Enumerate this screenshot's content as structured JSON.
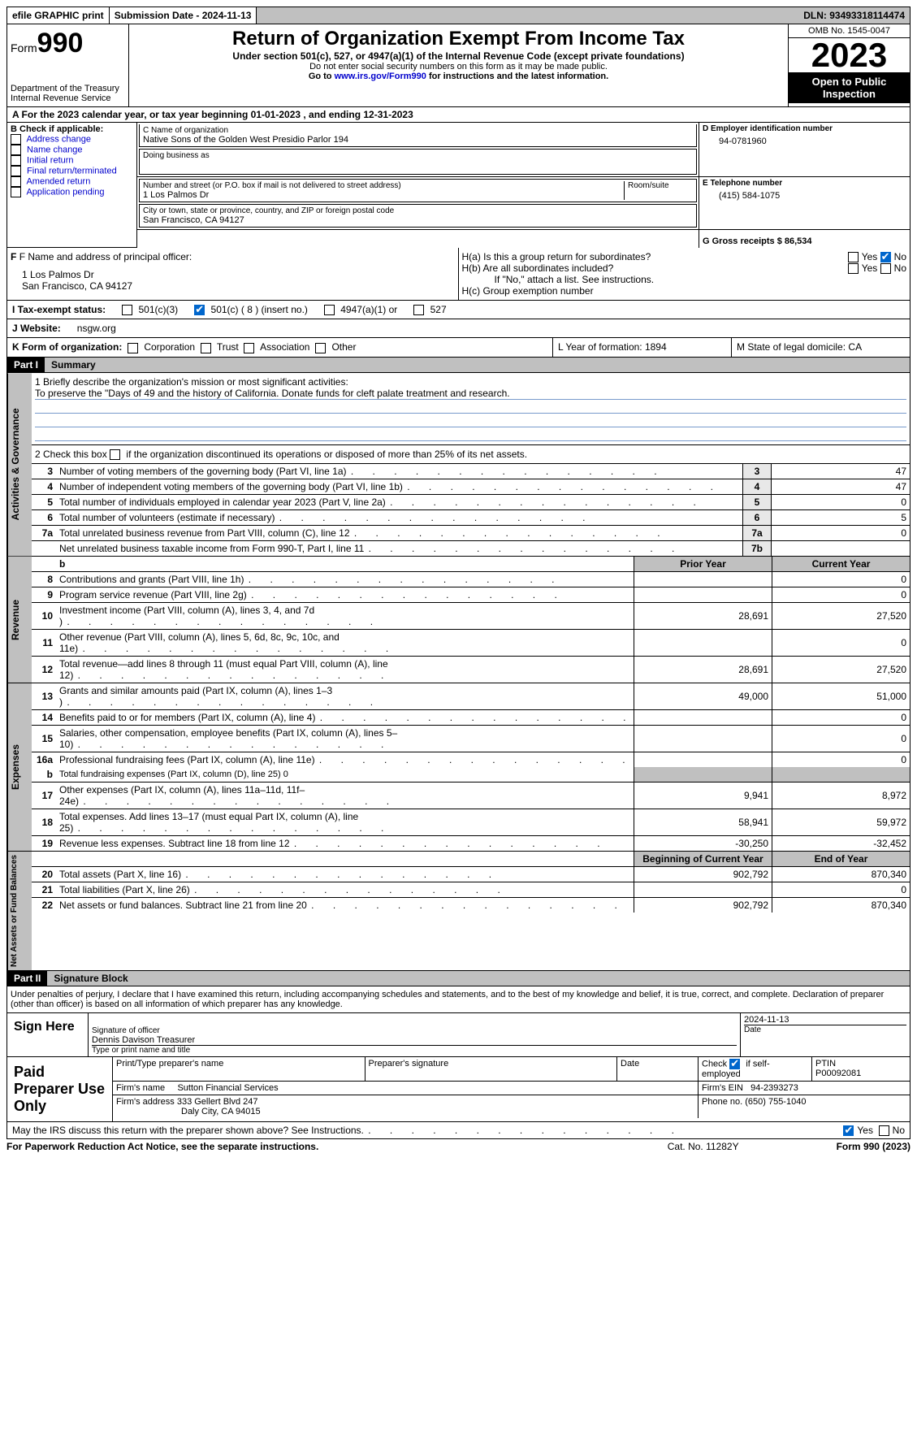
{
  "top": {
    "efile": "efile GRAPHIC print",
    "submission_label": "Submission Date - 2024-11-13",
    "dln_label": "DLN: 93493318114474"
  },
  "header": {
    "form_word": "Form",
    "form_num": "990",
    "dept": "Department of the Treasury",
    "irs": "Internal Revenue Service",
    "title": "Return of Organization Exempt From Income Tax",
    "subtitle": "Under section 501(c), 527, or 4947(a)(1) of the Internal Revenue Code (except private foundations)",
    "ssn_note": "Do not enter social security numbers on this form as it may be made public.",
    "goto": "Go to ",
    "goto_link": "www.irs.gov/Form990",
    "goto_suffix": " for instructions and the latest information.",
    "omb": "OMB No. 1545-0047",
    "year": "2023",
    "open": "Open to Public Inspection"
  },
  "line_a": "A For the 2023 calendar year, or tax year beginning 01-01-2023    , and ending 12-31-2023",
  "section_b": {
    "label": "B Check if applicable:",
    "opts": [
      "Address change",
      "Name change",
      "Initial return",
      "Final return/terminated",
      "Amended return",
      "Application pending"
    ]
  },
  "section_c": {
    "name_label": "C Name of organization",
    "name": "Native Sons of the Golden West Presidio Parlor 194",
    "dba_label": "Doing business as",
    "street_label": "Number and street (or P.O. box if mail is not delivered to street address)",
    "room_label": "Room/suite",
    "street": "1 Los Palmos Dr",
    "city_label": "City or town, state or province, country, and ZIP or foreign postal code",
    "city": "San Francisco, CA  94127"
  },
  "section_d": {
    "label": "D Employer identification number",
    "value": "94-0781960"
  },
  "section_e": {
    "label": "E Telephone number",
    "value": "(415) 584-1075"
  },
  "section_g": {
    "label": "G Gross receipts $ 86,534"
  },
  "section_f": {
    "label": "F  Name and address of principal officer:",
    "addr1": "1 Los Palmos Dr",
    "addr2": "San Francisco, CA  94127"
  },
  "section_h": {
    "a": "H(a)  Is this a group return for subordinates?",
    "b": "H(b)  Are all subordinates included?",
    "b_note": "If \"No,\" attach a list. See instructions.",
    "c": "H(c)  Group exemption number",
    "yes": "Yes",
    "no": "No"
  },
  "section_i": {
    "label": "I   Tax-exempt status:",
    "o1": "501(c)(3)",
    "o2": "501(c) ( 8 ) (insert no.)",
    "o3": "4947(a)(1) or",
    "o4": "527"
  },
  "section_j": {
    "label": "J   Website:",
    "value": "nsgw.org"
  },
  "section_k": {
    "label": "K Form of organization:",
    "o1": "Corporation",
    "o2": "Trust",
    "o3": "Association",
    "o4": "Other"
  },
  "section_l": "L Year of formation: 1894",
  "section_m": "M State of legal domicile: CA",
  "part1": {
    "num": "Part I",
    "title": "Summary",
    "l1_label": "1   Briefly describe the organization's mission or most significant activities:",
    "l1_text": "To preserve the \"Days of 49 and the history of California. Donate funds for cleft palate treatment and research.",
    "l2_label": "2   Check this box",
    "l2_suffix": "if the organization discontinued its operations or disposed of more than 25% of its net assets.",
    "gov_label": "Activities & Governance",
    "rev_label": "Revenue",
    "exp_label": "Expenses",
    "net_label": "Net Assets or Fund Balances",
    "lines_gov": [
      {
        "n": "3",
        "t": "Number of voting members of the governing body (Part VI, line 1a)",
        "box": "3",
        "v": "47"
      },
      {
        "n": "4",
        "t": "Number of independent voting members of the governing body (Part VI, line 1b)",
        "box": "4",
        "v": "47"
      },
      {
        "n": "5",
        "t": "Total number of individuals employed in calendar year 2023 (Part V, line 2a)",
        "box": "5",
        "v": "0"
      },
      {
        "n": "6",
        "t": "Total number of volunteers (estimate if necessary)",
        "box": "6",
        "v": "5"
      },
      {
        "n": "7a",
        "t": "Total unrelated business revenue from Part VIII, column (C), line 12",
        "box": "7a",
        "v": "0"
      },
      {
        "n": "",
        "t": "Net unrelated business taxable income from Form 990-T, Part I, line 11",
        "box": "7b",
        "v": ""
      }
    ],
    "hdr_b": "b",
    "hdr_prior": "Prior Year",
    "hdr_current": "Current Year",
    "lines_rev": [
      {
        "n": "8",
        "t": "Contributions and grants (Part VIII, line 1h)",
        "p": "",
        "c": "0"
      },
      {
        "n": "9",
        "t": "Program service revenue (Part VIII, line 2g)",
        "p": "",
        "c": "0"
      },
      {
        "n": "10",
        "t": "Investment income (Part VIII, column (A), lines 3, 4, and 7d )",
        "p": "28,691",
        "c": "27,520"
      },
      {
        "n": "11",
        "t": "Other revenue (Part VIII, column (A), lines 5, 6d, 8c, 9c, 10c, and 11e)",
        "p": "",
        "c": "0"
      },
      {
        "n": "12",
        "t": "Total revenue—add lines 8 through 11 (must equal Part VIII, column (A), line 12)",
        "p": "28,691",
        "c": "27,520"
      }
    ],
    "lines_exp": [
      {
        "n": "13",
        "t": "Grants and similar amounts paid (Part IX, column (A), lines 1–3 )",
        "p": "49,000",
        "c": "51,000"
      },
      {
        "n": "14",
        "t": "Benefits paid to or for members (Part IX, column (A), line 4)",
        "p": "",
        "c": "0"
      },
      {
        "n": "15",
        "t": "Salaries, other compensation, employee benefits (Part IX, column (A), lines 5–10)",
        "p": "",
        "c": "0"
      },
      {
        "n": "16a",
        "t": "Professional fundraising fees (Part IX, column (A), line 11e)",
        "p": "",
        "c": "0"
      }
    ],
    "l16b_n": "b",
    "l16b_t": "Total fundraising expenses (Part IX, column (D), line 25) 0",
    "lines_exp2": [
      {
        "n": "17",
        "t": "Other expenses (Part IX, column (A), lines 11a–11d, 11f–24e)",
        "p": "9,941",
        "c": "8,972"
      },
      {
        "n": "18",
        "t": "Total expenses. Add lines 13–17 (must equal Part IX, column (A), line 25)",
        "p": "58,941",
        "c": "59,972"
      },
      {
        "n": "19",
        "t": "Revenue less expenses. Subtract line 18 from line 12",
        "p": "-30,250",
        "c": "-32,452"
      }
    ],
    "hdr_begin": "Beginning of Current Year",
    "hdr_end": "End of Year",
    "lines_net": [
      {
        "n": "20",
        "t": "Total assets (Part X, line 16)",
        "p": "902,792",
        "c": "870,340"
      },
      {
        "n": "21",
        "t": "Total liabilities (Part X, line 26)",
        "p": "",
        "c": "0"
      },
      {
        "n": "22",
        "t": "Net assets or fund balances. Subtract line 21 from line 20",
        "p": "902,792",
        "c": "870,340"
      }
    ]
  },
  "part2": {
    "num": "Part II",
    "title": "Signature Block",
    "decl": "Under penalties of perjury, I declare that I have examined this return, including accompanying schedules and statements, and to the best of my knowledge and belief, it is true, correct, and complete. Declaration of preparer (other than officer) is based on all information of which preparer has any knowledge.",
    "sign_here": "Sign Here",
    "sig_officer_lbl": "Signature of officer",
    "sig_date": "2024-11-13",
    "date_lbl": "Date",
    "officer_name": "Dennis Davison Treasurer",
    "type_name_lbl": "Type or print name and title",
    "paid": "Paid Preparer Use Only",
    "prep_name_lbl": "Print/Type preparer's name",
    "prep_sig_lbl": "Preparer's signature",
    "check_if": "Check",
    "self_emp": "if self-employed",
    "ptin_lbl": "PTIN",
    "ptin": "P00092081",
    "firm_name_lbl": "Firm's name",
    "firm_name": "Sutton Financial Services",
    "firm_ein_lbl": "Firm's EIN",
    "firm_ein": "94-2393273",
    "firm_addr_lbl": "Firm's address",
    "firm_addr1": "333 Gellert Blvd 247",
    "firm_addr2": "Daly City, CA  94015",
    "phone_lbl": "Phone no.",
    "phone": "(650) 755-1040",
    "discuss": "May the IRS discuss this return with the preparer shown above? See Instructions."
  },
  "footer": {
    "pra": "For Paperwork Reduction Act Notice, see the separate instructions.",
    "cat": "Cat. No. 11282Y",
    "form": "Form 990 (2023)"
  }
}
